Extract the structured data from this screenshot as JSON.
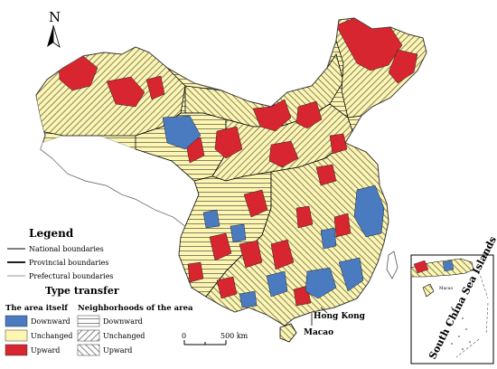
{
  "north_arrow": {
    "label": "N"
  },
  "legend": {
    "title": "Legend",
    "boundaries": [
      {
        "label": "National boundaries",
        "color": "#555555"
      },
      {
        "label": "Provincial boundaries",
        "color": "#000000"
      },
      {
        "label": "Prefectural boundaries",
        "color": "#999999"
      }
    ],
    "type_transfer_title": "Type transfer",
    "area_itself_header": "The area  itself",
    "neighborhoods_header": "Neighborhoods of the area",
    "area_items": [
      {
        "label": "Downward",
        "color": "#4a7bc0"
      },
      {
        "label": "Unchanged",
        "color": "#fdf6b2"
      },
      {
        "label": "Upward",
        "color": "#d7262f"
      }
    ],
    "neighborhood_items": [
      {
        "label": "Downward",
        "hatch": "horizontal"
      },
      {
        "label": "Unchanged",
        "hatch": "backslash"
      },
      {
        "label": "Upward",
        "hatch": "slash"
      }
    ]
  },
  "scale_bar": {
    "start": "0",
    "end": "500 km"
  },
  "places": {
    "hong_kong": "Hong Kong",
    "macao": "Macao"
  },
  "inset": {
    "title": "South China Sea Islands",
    "small_label": "Macao"
  },
  "colors": {
    "downward": "#4a7bc0",
    "unchanged": "#fdf6b2",
    "upward": "#d7262f",
    "no_data": "#ffffff"
  }
}
